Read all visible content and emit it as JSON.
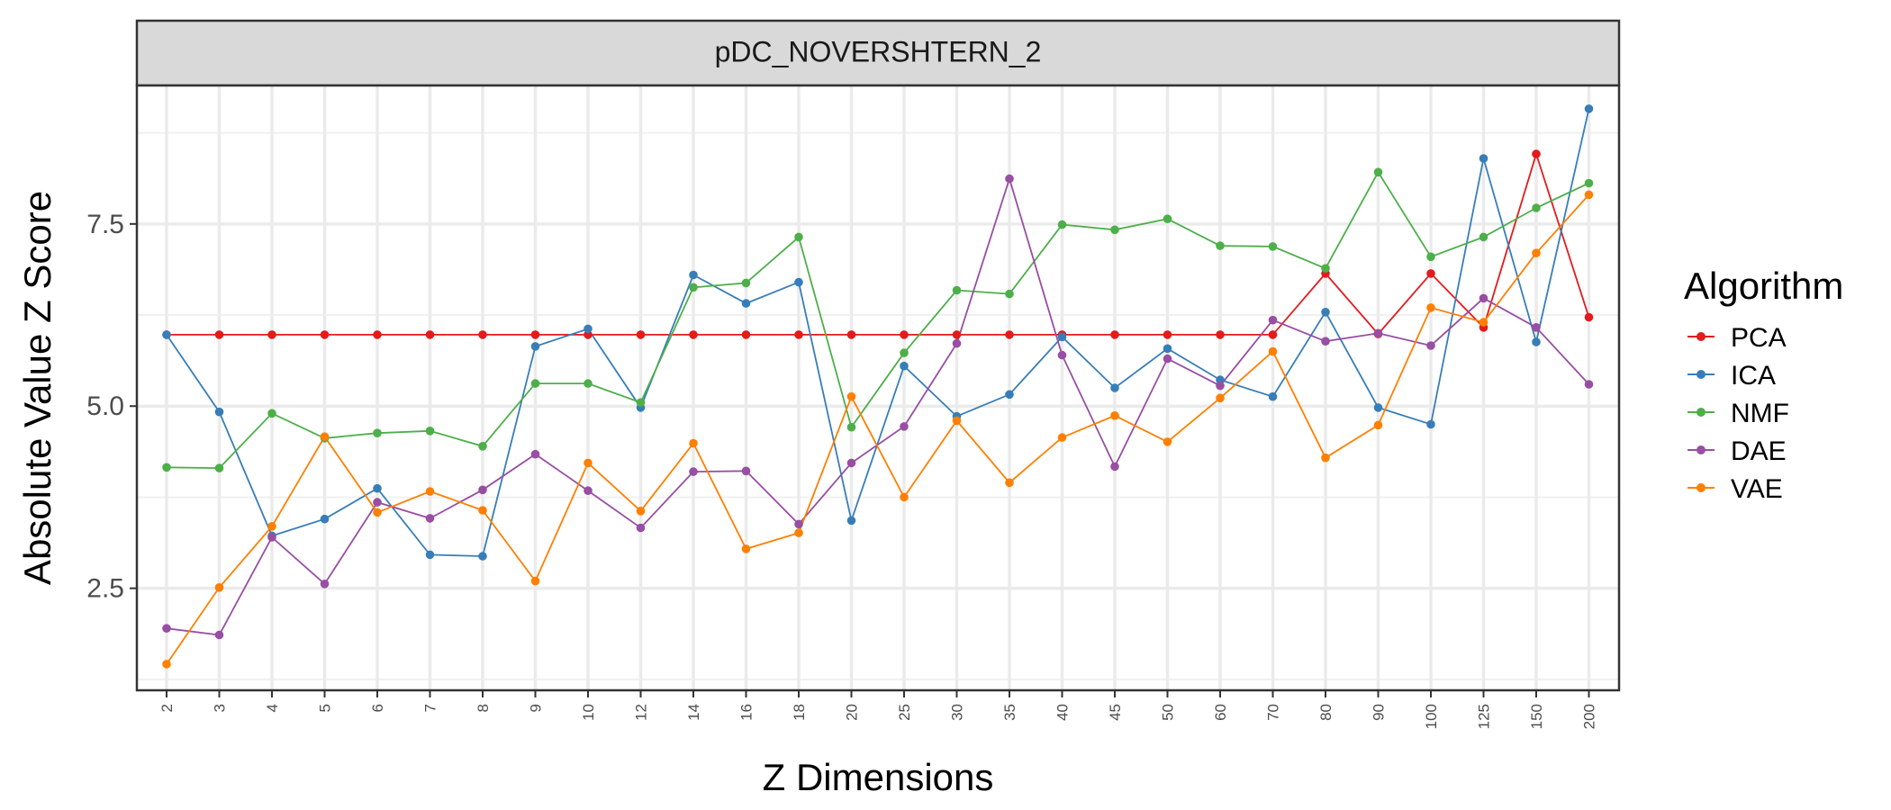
{
  "chart_data": {
    "type": "line",
    "facet_title": "pDC_NOVERSHTERN_2",
    "xlabel": "Z Dimensions",
    "ylabel": "Absolute Value Z Score",
    "categories": [
      "2",
      "3",
      "4",
      "5",
      "6",
      "7",
      "8",
      "9",
      "10",
      "12",
      "14",
      "16",
      "18",
      "20",
      "25",
      "30",
      "35",
      "40",
      "45",
      "50",
      "60",
      "70",
      "80",
      "90",
      "100",
      "125",
      "150",
      "200"
    ],
    "ylim": [
      1.1,
      9.4
    ],
    "yticks": [
      "2.5",
      "5.0",
      "7.5"
    ],
    "grid": true,
    "legend": {
      "title": "Algorithm",
      "position": "right"
    },
    "series": [
      {
        "name": "PCA",
        "color": "#e41a1c",
        "values": [
          5.98,
          5.98,
          5.98,
          5.98,
          5.98,
          5.98,
          5.98,
          5.98,
          5.98,
          5.98,
          5.98,
          5.98,
          5.98,
          5.98,
          5.98,
          5.98,
          5.98,
          5.98,
          5.98,
          5.98,
          5.98,
          5.98,
          6.82,
          5.99,
          6.82,
          6.08,
          8.46,
          6.22
        ]
      },
      {
        "name": "ICA",
        "color": "#377eb8",
        "values": [
          5.98,
          4.92,
          3.22,
          3.45,
          3.87,
          2.96,
          2.94,
          5.82,
          6.06,
          4.98,
          6.8,
          6.41,
          6.7,
          3.43,
          5.55,
          4.86,
          5.16,
          5.95,
          5.25,
          5.79,
          5.36,
          5.13,
          6.29,
          4.98,
          4.75,
          8.4,
          5.88,
          9.08
        ]
      },
      {
        "name": "NMF",
        "color": "#4daf4a",
        "values": [
          4.16,
          4.15,
          4.9,
          4.56,
          4.63,
          4.66,
          4.45,
          5.31,
          5.31,
          5.05,
          6.63,
          6.69,
          7.32,
          4.71,
          5.73,
          6.59,
          6.54,
          7.49,
          7.42,
          7.57,
          7.2,
          7.19,
          6.89,
          8.21,
          7.05,
          7.32,
          7.72,
          8.06
        ]
      },
      {
        "name": "DAE",
        "color": "#984ea3",
        "values": [
          1.95,
          1.86,
          3.2,
          2.56,
          3.68,
          3.46,
          3.85,
          4.34,
          3.84,
          3.33,
          4.1,
          4.11,
          3.38,
          4.22,
          4.72,
          5.86,
          8.12,
          5.7,
          4.17,
          5.65,
          5.28,
          6.18,
          5.89,
          6.0,
          5.83,
          6.48,
          6.08,
          5.3
        ]
      },
      {
        "name": "VAE",
        "color": "#ff7f00",
        "values": [
          1.46,
          2.51,
          3.35,
          4.58,
          3.54,
          3.83,
          3.57,
          2.6,
          4.22,
          3.56,
          4.49,
          3.04,
          3.26,
          5.13,
          3.75,
          4.8,
          3.95,
          4.57,
          4.87,
          4.51,
          5.11,
          5.75,
          4.29,
          4.74,
          6.35,
          6.15,
          7.1,
          7.9
        ]
      }
    ]
  }
}
